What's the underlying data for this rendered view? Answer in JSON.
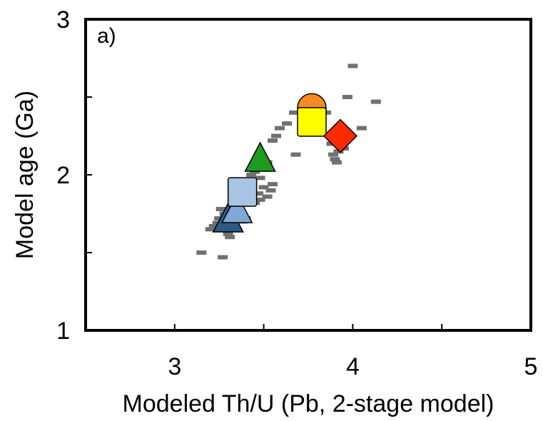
{
  "chart_data": {
    "type": "scatter",
    "panel_label": "a)",
    "xlabel": "Modeled Th/U (Pb, 2-stage model)",
    "ylabel": "Model age (Ga)",
    "xlim": [
      2.5,
      5.0
    ],
    "ylim": [
      1.0,
      3.0
    ],
    "x_ticks": [
      2.5,
      3.0,
      3.5,
      4.0,
      4.5,
      5.0
    ],
    "x_tick_labels": [
      "3",
      "4",
      "5"
    ],
    "x_tick_label_values": [
      3,
      4,
      5
    ],
    "y_ticks": [
      1.0,
      1.5,
      2.0,
      2.5,
      3.0
    ],
    "y_tick_labels": [
      "1",
      "2",
      "3"
    ],
    "y_tick_label_values": [
      1,
      2,
      3
    ],
    "grid": false,
    "series": [
      {
        "marker": "dash",
        "color": "#707070",
        "points": [
          [
            3.15,
            1.5
          ],
          [
            3.27,
            1.47
          ],
          [
            3.22,
            1.67
          ],
          [
            3.2,
            1.65
          ],
          [
            3.25,
            1.72
          ],
          [
            3.26,
            1.78
          ],
          [
            3.28,
            1.75
          ],
          [
            3.3,
            1.62
          ],
          [
            3.31,
            1.6
          ],
          [
            3.33,
            1.76
          ],
          [
            3.35,
            1.78
          ],
          [
            3.38,
            1.74
          ],
          [
            3.4,
            1.72
          ],
          [
            3.4,
            1.96
          ],
          [
            3.43,
            2.0
          ],
          [
            3.45,
            1.82
          ],
          [
            3.47,
            1.88
          ],
          [
            3.48,
            1.84
          ],
          [
            3.5,
            1.92
          ],
          [
            3.52,
            1.86
          ],
          [
            3.54,
            1.9
          ],
          [
            3.55,
            1.94
          ],
          [
            3.5,
            2.06
          ],
          [
            3.52,
            2.08
          ],
          [
            3.55,
            2.22
          ],
          [
            3.57,
            2.25
          ],
          [
            3.59,
            2.3
          ],
          [
            3.63,
            2.33
          ],
          [
            3.67,
            2.4
          ],
          [
            3.68,
            2.13
          ],
          [
            3.72,
            2.45
          ],
          [
            3.8,
            2.32
          ],
          [
            3.85,
            2.4
          ],
          [
            3.88,
            2.2
          ],
          [
            3.89,
            2.13
          ],
          [
            3.9,
            2.1
          ],
          [
            3.91,
            2.08
          ],
          [
            3.92,
            2.15
          ],
          [
            3.95,
            2.17
          ],
          [
            3.97,
            2.5
          ],
          [
            4.0,
            2.7
          ],
          [
            4.05,
            2.3
          ],
          [
            4.13,
            2.47
          ],
          [
            3.45,
            2.02
          ],
          [
            3.48,
            1.98
          ],
          [
            3.36,
            1.82
          ],
          [
            3.42,
            1.86
          ],
          [
            3.38,
            1.7
          ],
          [
            3.24,
            1.69
          ]
        ]
      },
      {
        "marker": "triangle",
        "color": "#2e5a84",
        "points": [
          [
            3.3,
            1.72
          ]
        ]
      },
      {
        "marker": "triangle",
        "color": "#7fa8d6",
        "points": [
          [
            3.35,
            1.78
          ]
        ]
      },
      {
        "marker": "square",
        "color": "#a8c4e4",
        "points": [
          [
            3.38,
            1.89
          ]
        ]
      },
      {
        "marker": "triangle",
        "color": "#1f9a1f",
        "points": [
          [
            3.48,
            2.11
          ]
        ]
      },
      {
        "marker": "circle",
        "color": "#f58b20",
        "points": [
          [
            3.77,
            2.43
          ]
        ]
      },
      {
        "marker": "square",
        "color": "#ffff00",
        "points": [
          [
            3.77,
            2.34
          ]
        ]
      },
      {
        "marker": "diamond",
        "color": "#ff2a00",
        "points": [
          [
            3.93,
            2.25
          ]
        ]
      }
    ]
  }
}
